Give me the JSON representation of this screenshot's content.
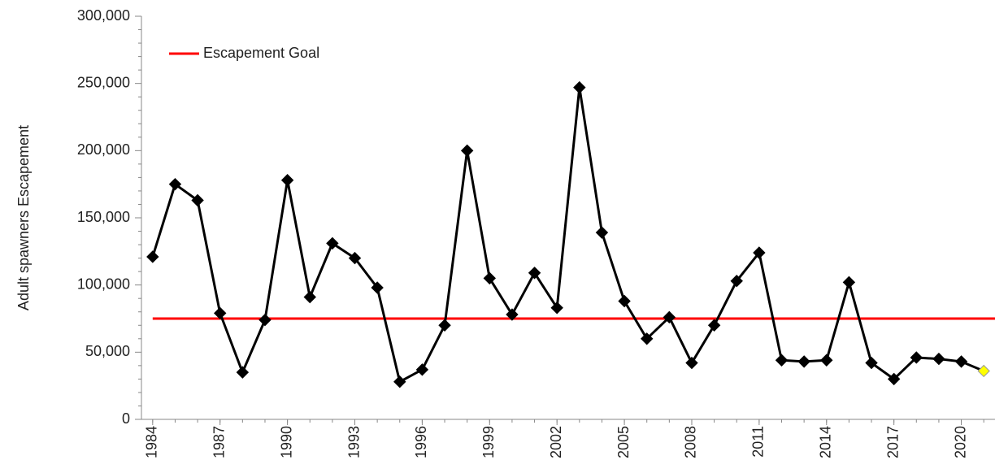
{
  "chart_data": {
    "type": "line",
    "y_label": "Adult spawners Escapement",
    "x": [
      1984,
      1985,
      1986,
      1987,
      1988,
      1989,
      1990,
      1991,
      1992,
      1993,
      1994,
      1995,
      1996,
      1997,
      1998,
      1999,
      2000,
      2001,
      2002,
      2003,
      2004,
      2005,
      2006,
      2007,
      2008,
      2009,
      2010,
      2011,
      2012,
      2013,
      2014,
      2015,
      2016,
      2017,
      2018,
      2019,
      2020,
      2021
    ],
    "series": [
      {
        "name": null,
        "color": "#000000",
        "marker": "diamond",
        "last_marker_color": "#ffff00",
        "values": [
          121000,
          175000,
          163000,
          79000,
          35000,
          74000,
          178000,
          91000,
          131000,
          120000,
          98000,
          28000,
          37000,
          70000,
          200000,
          105000,
          78000,
          109000,
          83000,
          247000,
          139000,
          88000,
          60000,
          76000,
          42000,
          70000,
          103000,
          124000,
          44000,
          43000,
          44000,
          102000,
          42000,
          30000,
          46000,
          45000,
          43000,
          36000
        ]
      }
    ],
    "goal": {
      "name": "Escapement Goal",
      "value": 75000,
      "color": "#ff0000"
    },
    "xlim": [
      1983.5,
      2021.5
    ],
    "xticks": [
      1984,
      1987,
      1990,
      1993,
      1996,
      1999,
      2002,
      2005,
      2008,
      2011,
      2014,
      2017,
      2020
    ],
    "ylim": [
      0,
      300000
    ],
    "yticks": [
      0,
      {
        "value": 50000,
        "label": "50,000"
      },
      {
        "value": 100000,
        "label": "100,000"
      },
      {
        "value": 150000,
        "label": "150,000"
      },
      {
        "value": 200000,
        "label": "200,000"
      },
      {
        "value": 250000,
        "label": "250,000"
      },
      {
        "value": 300000,
        "label": "300,000"
      }
    ],
    "grid": false
  }
}
